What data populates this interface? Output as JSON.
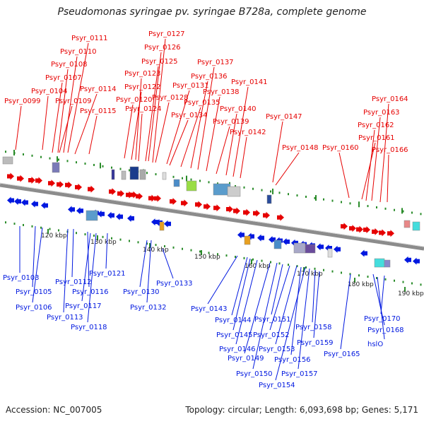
{
  "title": "Pseudomonas syringae pv. syringae B728a, complete genome",
  "accession": "Accession: NC_007005",
  "summary": "Topology: circular; Length: 6,093,698 bp; Genes: 5,171",
  "colors": {
    "forward": "#e60000",
    "reverse": "#0018e0",
    "backbone": "#8c8c8c",
    "tick": "#2a8c2a"
  },
  "scale_labels": [
    "120 kbp",
    "130 kbp",
    "140 kbp",
    "150 kbp",
    "160 kbp",
    "170 kbp",
    "180 kbp",
    "190 kbp"
  ],
  "forward_genes": [
    "Psyr_0099",
    "Psyr_0104",
    "Psyr_0107",
    "Psyr_0108",
    "Psyr_0110",
    "Psyr_0111",
    "Psyr_0109",
    "Psyr_0114",
    "Psyr_0115",
    "Psyr_0120",
    "Psyr_0122",
    "Psyr_0123",
    "Psyr_0124",
    "Psyr_0125",
    "Psyr_0126",
    "Psyr_0127",
    "Psyr_0128",
    "Psyr_0131",
    "Psyr_0134",
    "Psyr_0135",
    "Psyr_0136",
    "Psyr_0137",
    "Psyr_0138",
    "Psyr_0139",
    "Psyr_0140",
    "Psyr_0141",
    "Psyr_0142",
    "Psyr_0147",
    "Psyr_0148",
    "Psyr_0160",
    "Psyr_0161",
    "Psyr_0162",
    "Psyr_0163",
    "Psyr_0164",
    "Psyr_0166"
  ],
  "reverse_genes": [
    "Psyr_0103",
    "Psyr_0105",
    "Psyr_0106",
    "Psyr_0112",
    "Psyr_0113",
    "Psyr_0116",
    "Psyr_0117",
    "Psyr_0118",
    "Psyr_0121",
    "Psyr_0130",
    "Psyr_0132",
    "Psyr_0133",
    "Psyr_0143",
    "Psyr_0144",
    "Psyr_0145",
    "Psyr_0146",
    "Psyr_0149",
    "Psyr_0150",
    "Psyr_0151",
    "Psyr_0152",
    "Psyr_0153",
    "Psyr_0154",
    "Psyr_0156",
    "Psyr_0157",
    "Psyr_0158",
    "Psyr_0159",
    "Psyr_0165",
    "Psyr_0168",
    "Psyr_0170",
    "hslO"
  ]
}
